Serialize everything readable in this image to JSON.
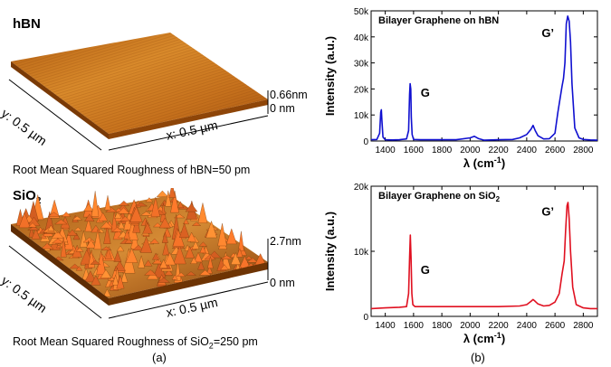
{
  "panel_a": {
    "label": "(a)",
    "top": {
      "title": "hBN",
      "x_axis": "x: 0.5 µm",
      "y_axis": "y: 0.5 µm",
      "z_max": "0.66nm",
      "z_min": "0 nm",
      "caption": "Root Mean Squared Roughness of hBN=50 pm"
    },
    "bottom": {
      "title_main": "SiO",
      "title_sub": "2",
      "x_axis": "x: 0.5 µm",
      "y_axis": "y: 0.5 µm",
      "z_max": "2.7nm",
      "z_min": "0 nm",
      "caption_main": "Root Mean Squared Roughness of SiO",
      "caption_sub": "2",
      "caption_tail": "=250 pm"
    }
  },
  "panel_b": {
    "label": "(b)"
  },
  "colors": {
    "hbn_line": "#1010d0",
    "sio2_line": "#e01020",
    "hbn_surface": "#c8741c",
    "sio2_surface": "#b05a10"
  },
  "chart_data": [
    {
      "type": "line",
      "title": "Bilayer Graphene on hBN",
      "xlabel": "λ (cm",
      "xlabel_sup": "-1",
      "xlabel_tail": ")",
      "ylabel": "Intensity (a.u.)",
      "xlim": [
        1300,
        2900
      ],
      "ylim": [
        0,
        50000
      ],
      "xticks": [
        1400,
        1600,
        1800,
        2000,
        2200,
        2400,
        2600,
        2800
      ],
      "yticks": [
        0,
        10000,
        20000,
        30000,
        40000,
        50000
      ],
      "ytick_labels": [
        "0",
        "10k",
        "20k",
        "30k",
        "40k",
        "50k"
      ],
      "annotations": [
        {
          "text": "G",
          "x": 1580
        },
        {
          "text": "G’",
          "x": 2690
        }
      ],
      "series": [
        {
          "color": "#1010d0",
          "x": [
            1300,
            1340,
            1360,
            1368,
            1372,
            1376,
            1384,
            1400,
            1450,
            1500,
            1550,
            1565,
            1572,
            1576,
            1580,
            1584,
            1590,
            1600,
            1650,
            1700,
            1800,
            1900,
            2000,
            2030,
            2060,
            2100,
            2200,
            2300,
            2350,
            2400,
            2430,
            2445,
            2460,
            2480,
            2520,
            2560,
            2600,
            2620,
            2635,
            2650,
            2660,
            2670,
            2680,
            2690,
            2700,
            2710,
            2720,
            2740,
            2770,
            2800,
            2850,
            2900
          ],
          "values": [
            500,
            600,
            3000,
            11000,
            12000,
            8000,
            1500,
            500,
            400,
            500,
            800,
            4000,
            18000,
            22000,
            20000,
            9000,
            2500,
            600,
            500,
            500,
            500,
            500,
            1200,
            1800,
            900,
            300,
            500,
            600,
            1200,
            2500,
            4500,
            6000,
            4000,
            2000,
            800,
            900,
            3000,
            11000,
            16000,
            21000,
            24000,
            30000,
            45000,
            48000,
            46000,
            38000,
            22000,
            5000,
            1200,
            600,
            400,
            300
          ]
        }
      ]
    },
    {
      "type": "line",
      "title": "Bilayer Graphene on SiO",
      "title_sub": "2",
      "xlabel": "λ (cm",
      "xlabel_sup": "-1",
      "xlabel_tail": ")",
      "ylabel": "Intensity (a.u.)",
      "xlim": [
        1300,
        2900
      ],
      "ylim": [
        0,
        20000
      ],
      "xticks": [
        1400,
        1600,
        1800,
        2000,
        2200,
        2400,
        2600,
        2800
      ],
      "yticks": [
        0,
        10000,
        20000
      ],
      "ytick_labels": [
        "0",
        "10k",
        "20k"
      ],
      "annotations": [
        {
          "text": "G",
          "x": 1580
        },
        {
          "text": "G’",
          "x": 2690
        }
      ],
      "series": [
        {
          "color": "#e01020",
          "x": [
            1300,
            1400,
            1500,
            1550,
            1565,
            1572,
            1577,
            1582,
            1588,
            1595,
            1610,
            1700,
            1800,
            2000,
            2200,
            2350,
            2400,
            2430,
            2445,
            2460,
            2480,
            2520,
            2560,
            2600,
            2630,
            2650,
            2665,
            2675,
            2685,
            2692,
            2700,
            2710,
            2725,
            2750,
            2800,
            2850,
            2900
          ],
          "values": [
            1200,
            1300,
            1400,
            1500,
            3500,
            9000,
            12500,
            9000,
            3500,
            1800,
            1500,
            1500,
            1500,
            1500,
            1500,
            1600,
            1800,
            2300,
            2600,
            2300,
            1900,
            1600,
            1700,
            2200,
            3500,
            6500,
            8500,
            13000,
            17000,
            17500,
            15000,
            10000,
            4500,
            1800,
            1300,
            1200,
            1200
          ]
        }
      ]
    }
  ]
}
